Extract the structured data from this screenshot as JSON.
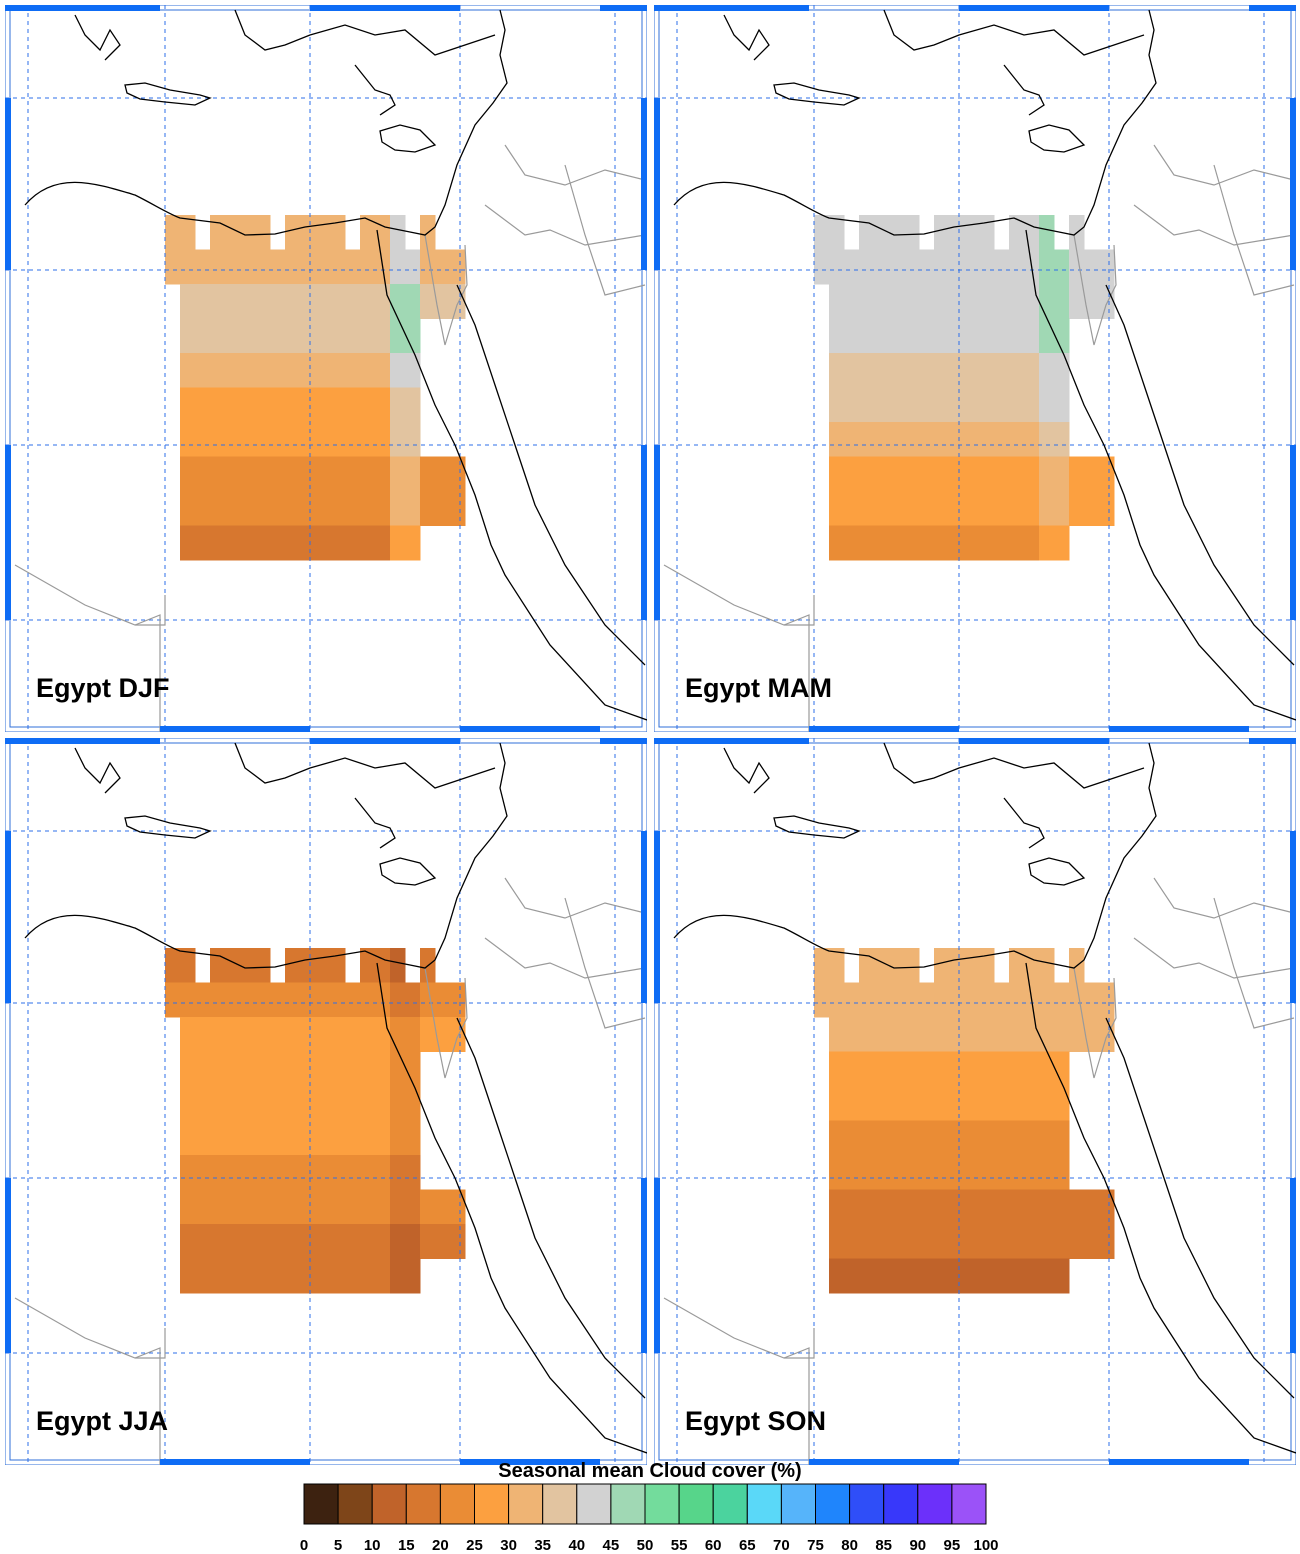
{
  "panels": [
    {
      "id": "djf",
      "label": "Egypt DJF"
    },
    {
      "id": "mam",
      "label": "Egypt MAM"
    },
    {
      "id": "jja",
      "label": "Egypt JJA"
    },
    {
      "id": "son",
      "label": "Egypt SON"
    }
  ],
  "legend": {
    "title": "Seasonal mean Cloud cover (%)",
    "ticks": [
      "0",
      "5",
      "10",
      "15",
      "20",
      "25",
      "30",
      "35",
      "40",
      "45",
      "50",
      "55",
      "60",
      "65",
      "70",
      "75",
      "80",
      "85",
      "90",
      "95",
      "100"
    ],
    "colors": [
      "#3d2210",
      "#7e4519",
      "#c0632a",
      "#d7772f",
      "#ea8c35",
      "#fca040",
      "#efb474",
      "#e2c4a0",
      "#d2d2d2",
      "#a0d8b4",
      "#73dc9c",
      "#57d58a",
      "#4bd39e",
      "#5ad8f8",
      "#56b4fa",
      "#1f85fc",
      "#2f4ef8",
      "#3838fa",
      "#6c30fa",
      "#9b52f8",
      "#cf9ef9"
    ]
  },
  "panel_fields": {
    "djf": {
      "bands": [
        6,
        6,
        7,
        7,
        6,
        5,
        5,
        4,
        4,
        3
      ],
      "coast": [
        5,
        4
      ],
      "notes": "gray north, light tan middle, orange south"
    },
    "mam": {
      "bands": [
        8,
        8,
        8,
        8,
        7,
        7,
        6,
        5,
        5,
        4
      ],
      "coast": [
        5,
        3
      ],
      "notes": "gray dominant north/centre"
    },
    "jja": {
      "bands": [
        3,
        4,
        5,
        5,
        5,
        5,
        4,
        4,
        3,
        3
      ],
      "coast": [
        0,
        1
      ],
      "notes": "orange with tan wedge"
    },
    "son": {
      "bands": [
        6,
        6,
        6,
        5,
        5,
        4,
        4,
        3,
        3,
        2
      ],
      "coast": [
        1,
        2
      ],
      "notes": "tan north, orange south"
    }
  }
}
